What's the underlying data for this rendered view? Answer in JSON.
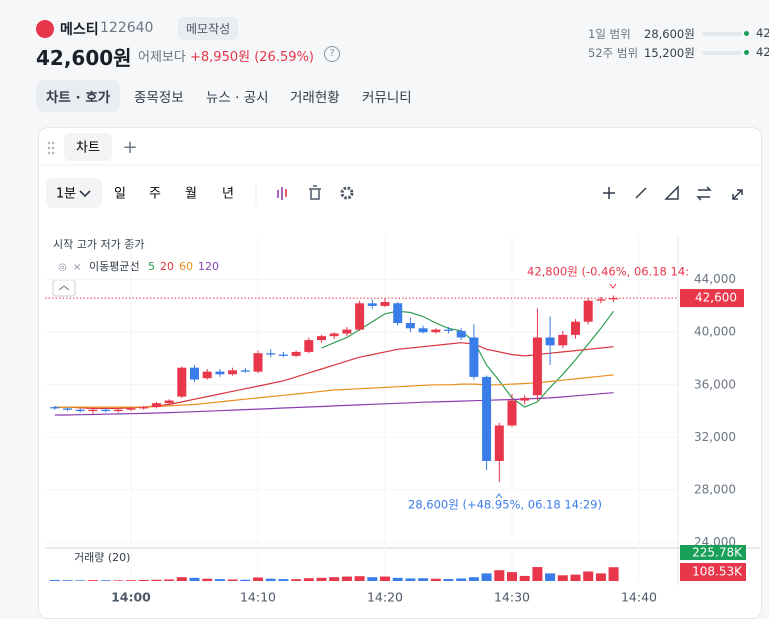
{
  "header": {
    "name": "메스티",
    "code": "122640",
    "memo": "메모작성",
    "price": "42,600원",
    "compare": "어제보다",
    "change": "+8,950원 (26.59%)"
  },
  "range": {
    "day_label": "1일 범위",
    "day_low": "28,600원",
    "day_high": "42",
    "year_label": "52주 범위",
    "year_low": "15,200원",
    "year_high": "42"
  },
  "tabs": [
    "차트 · 호가",
    "종목정보",
    "뉴스 · 공시",
    "거래현황",
    "커뮤니티"
  ],
  "panel_tab": "차트",
  "toolbar": {
    "interval": "1분",
    "periods": [
      "일",
      "주",
      "월",
      "년"
    ]
  },
  "chart_data": {
    "type": "candlestick",
    "legend": "시작 고가 저가 종가",
    "categories": [
      null,
      null,
      null,
      null,
      null,
      null,
      "14:00",
      null,
      null,
      null,
      null,
      null,
      null,
      null,
      null,
      null,
      "14:10",
      null,
      null,
      null,
      null,
      null,
      null,
      null,
      null,
      null,
      "14:20",
      null,
      null,
      null,
      null,
      null,
      null,
      null,
      null,
      null,
      "14:30",
      null,
      null,
      null,
      null,
      null,
      null,
      null,
      null,
      null,
      "14:40",
      null,
      null,
      null
    ],
    "open": [
      34300,
      34200,
      34100,
      34000,
      34100,
      34000,
      34100,
      34200,
      34300,
      34600,
      35100,
      37300,
      36500,
      37000,
      36800,
      37100,
      37000,
      38400,
      38300,
      38200,
      38500,
      39400,
      39700,
      39900,
      40200,
      42200,
      42000,
      42200,
      40700,
      40300,
      40000,
      40200,
      40100,
      39600,
      36600,
      30200,
      32900,
      34800,
      35200,
      39600,
      39000,
      39800,
      40800,
      42400,
      42500,
      null,
      null,
      null,
      null,
      null
    ],
    "high": [
      34400,
      34300,
      34200,
      34300,
      34200,
      34200,
      34300,
      34400,
      34700,
      34900,
      37400,
      37500,
      37200,
      37200,
      37300,
      37300,
      38600,
      38700,
      38500,
      38600,
      39600,
      39800,
      40000,
      40400,
      42400,
      42500,
      42600,
      42300,
      41100,
      40500,
      40300,
      40400,
      40300,
      40600,
      36700,
      33100,
      35300,
      35200,
      41800,
      41200,
      40100,
      41000,
      42600,
      42700,
      42800,
      null,
      null,
      null,
      null,
      null
    ],
    "low": [
      34100,
      34000,
      33900,
      33800,
      33900,
      33900,
      34000,
      34100,
      34200,
      34500,
      35000,
      36200,
      36400,
      36600,
      36700,
      36900,
      36900,
      38100,
      38100,
      38100,
      38400,
      39200,
      39500,
      39700,
      40100,
      41800,
      41900,
      40500,
      40000,
      39900,
      39900,
      39900,
      39400,
      36400,
      29500,
      28600,
      32800,
      34500,
      34800,
      37500,
      38800,
      39500,
      40600,
      42200,
      42300,
      null,
      null,
      null,
      null,
      null
    ],
    "close": [
      34200,
      34100,
      34000,
      34100,
      34000,
      34100,
      34200,
      34300,
      34600,
      34800,
      37300,
      36400,
      37000,
      36800,
      37100,
      37000,
      38400,
      38300,
      38200,
      38500,
      39400,
      39700,
      39900,
      40200,
      42200,
      42000,
      42300,
      40700,
      40300,
      40000,
      40200,
      40100,
      39600,
      36600,
      30200,
      32900,
      34800,
      35000,
      39600,
      39000,
      39800,
      40800,
      42400,
      42500,
      42600,
      null,
      null,
      null,
      null,
      null
    ],
    "up_color": "#e8364a",
    "down_color": "#3a7ce8",
    "ylim": [
      23500,
      47400
    ],
    "yticks": [
      {
        "value": 44000,
        "label": "44,000"
      },
      {
        "value": 40000,
        "label": "40,000"
      },
      {
        "value": 36000,
        "label": "36,000"
      },
      {
        "value": 32000,
        "label": "32,000"
      },
      {
        "value": 28000,
        "label": "28,000"
      },
      {
        "value": 24000,
        "label": "24,000"
      }
    ],
    "current": {
      "value": 42600,
      "label": "42,600"
    },
    "high_note": "42,800원 (-0.46%, 06.18 14:",
    "low_note": "28,600원 (+48.95%, 06.18 14:29)",
    "ma": {
      "label": "이동평균선",
      "series": [
        {
          "name": "5",
          "color": "#2e9e4f",
          "values": [
            null,
            null,
            null,
            null,
            null,
            null,
            null,
            null,
            null,
            null,
            null,
            null,
            null,
            null,
            null,
            null,
            null,
            null,
            null,
            null,
            null,
            38800,
            39200,
            39600,
            40200,
            40800,
            41400,
            41600,
            41500,
            41200,
            40700,
            40300,
            40100,
            39300,
            37500,
            36300,
            35000,
            34300,
            34700,
            35800,
            36800,
            37900,
            39100,
            40300,
            41600,
            null,
            null,
            null,
            null,
            null
          ]
        },
        {
          "name": "20",
          "color": "#d9363e",
          "values": [
            34300,
            34300,
            34250,
            34200,
            34200,
            34200,
            34250,
            34300,
            34400,
            34500,
            34700,
            34900,
            35100,
            35300,
            35500,
            35700,
            35900,
            36100,
            36300,
            36600,
            36900,
            37200,
            37500,
            37800,
            38100,
            38300,
            38500,
            38700,
            38800,
            38900,
            39000,
            39100,
            39200,
            39100,
            38700,
            38500,
            38300,
            38200,
            38300,
            38400,
            38500,
            38600,
            38700,
            38800,
            38900,
            null,
            null,
            null,
            null,
            null
          ]
        },
        {
          "name": "60",
          "color": "#e8901e",
          "values": [
            34300,
            34300,
            34300,
            34300,
            34300,
            34300,
            34300,
            34300,
            34350,
            34400,
            34450,
            34500,
            34600,
            34700,
            34800,
            34900,
            35000,
            35100,
            35200,
            35300,
            35400,
            35500,
            35600,
            35650,
            35700,
            35750,
            35800,
            35850,
            35900,
            35950,
            36000,
            36000,
            36050,
            36050,
            36000,
            36000,
            36050,
            36100,
            36150,
            36250,
            36350,
            36450,
            36550,
            36650,
            36750,
            null,
            null,
            null,
            null,
            null
          ]
        },
        {
          "name": "120",
          "color": "#8a3fb0",
          "values": [
            33700,
            33700,
            33720,
            33740,
            33760,
            33780,
            33800,
            33820,
            33850,
            33880,
            33910,
            33950,
            33990,
            34030,
            34070,
            34110,
            34150,
            34190,
            34230,
            34270,
            34310,
            34350,
            34390,
            34430,
            34470,
            34510,
            34550,
            34590,
            34630,
            34670,
            34700,
            34730,
            34760,
            34790,
            34820,
            34850,
            34880,
            34920,
            34960,
            35000,
            35080,
            35160,
            35240,
            35320,
            35400,
            null,
            null,
            null,
            null,
            null
          ]
        }
      ]
    },
    "volume": {
      "title": "거래량 (20)",
      "ylim": [
        0,
        260
      ],
      "labels": [
        "225.78K",
        "108.53K"
      ],
      "values": [
        8,
        6,
        5,
        7,
        6,
        5,
        6,
        8,
        10,
        12,
        30,
        25,
        18,
        15,
        12,
        10,
        28,
        18,
        15,
        14,
        22,
        25,
        30,
        35,
        38,
        30,
        35,
        25,
        20,
        22,
        18,
        15,
        20,
        30,
        60,
        85,
        70,
        40,
        110,
        60,
        45,
        50,
        75,
        60,
        108.53,
        null,
        null,
        null,
        null,
        null
      ]
    }
  }
}
